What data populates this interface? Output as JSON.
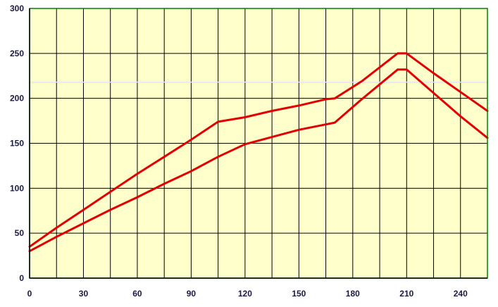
{
  "chart_data": {
    "type": "line",
    "title": "",
    "xlabel": "",
    "ylabel": "",
    "xlim": [
      0,
      255
    ],
    "ylim": [
      0,
      300
    ],
    "x_ticks": [
      0,
      30,
      60,
      90,
      120,
      150,
      180,
      210,
      240
    ],
    "y_ticks": [
      0,
      50,
      100,
      150,
      200,
      250,
      300
    ],
    "x_tick_labels": [
      "0",
      "30",
      "60",
      "90",
      "120",
      "150",
      "180",
      "210",
      "240"
    ],
    "y_tick_labels": [
      "0",
      "50",
      "100",
      "150",
      "200",
      "250",
      "300"
    ],
    "grid": {
      "x_step": 15,
      "y_step": 50
    },
    "legend": "none",
    "series": [
      {
        "color": "#e00000",
        "x": [
          0,
          15,
          30,
          45,
          60,
          75,
          90,
          105,
          120,
          135,
          150,
          165,
          170,
          185,
          205,
          210,
          225,
          240,
          255
        ],
        "y": [
          35,
          56,
          76,
          96,
          116,
          135,
          154,
          174,
          179,
          186,
          192,
          199,
          200,
          219,
          250,
          250,
          228,
          207,
          186
        ]
      },
      {
        "color": "#e00000",
        "x": [
          0,
          15,
          30,
          45,
          60,
          75,
          90,
          105,
          120,
          135,
          150,
          165,
          170,
          185,
          205,
          210,
          225,
          240,
          255
        ],
        "y": [
          30,
          46,
          61,
          76,
          90,
          105,
          119,
          135,
          149,
          157,
          165,
          171,
          173,
          199,
          232,
          232,
          206,
          180,
          156
        ]
      }
    ],
    "reference_line": {
      "y": 218,
      "color": "#b8b8c8"
    },
    "colors": {
      "plot_background": "#ffffcc",
      "grid": "#000000",
      "frame": "#008000"
    }
  }
}
